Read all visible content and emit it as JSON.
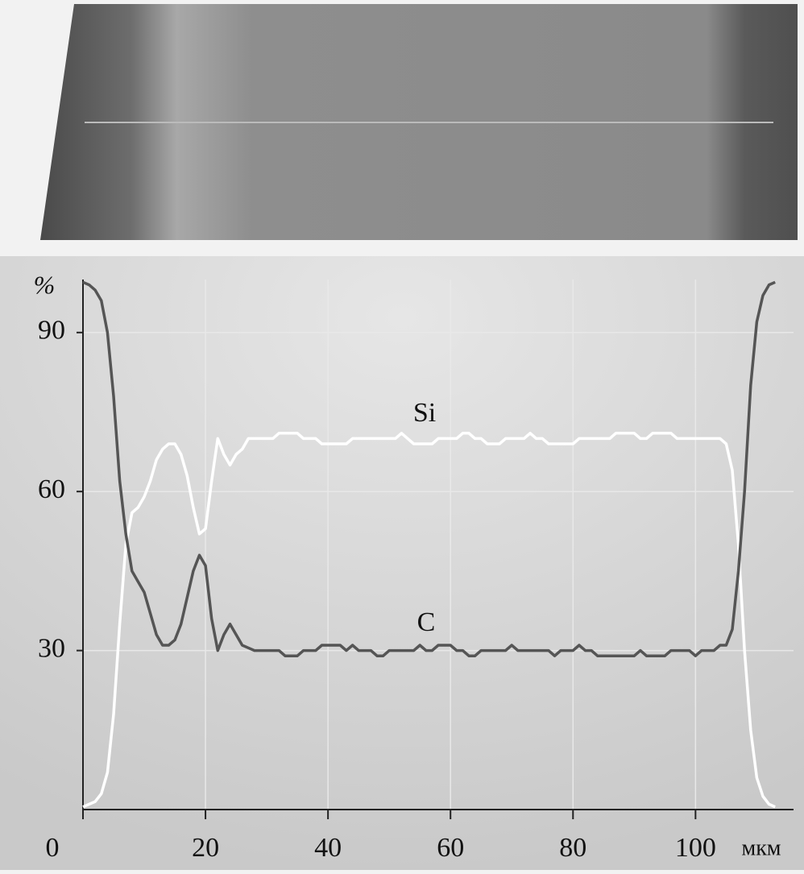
{
  "chart_data": {
    "type": "line",
    "x": [
      0,
      1,
      2,
      3,
      4,
      5,
      6,
      7,
      8,
      9,
      10,
      11,
      12,
      13,
      14,
      15,
      16,
      17,
      18,
      19,
      20,
      21,
      22,
      23,
      24,
      25,
      26,
      27,
      28,
      29,
      30,
      31,
      32,
      33,
      34,
      35,
      36,
      37,
      38,
      39,
      40,
      41,
      42,
      43,
      44,
      45,
      46,
      47,
      48,
      49,
      50,
      51,
      52,
      53,
      54,
      55,
      56,
      57,
      58,
      59,
      60,
      61,
      62,
      63,
      64,
      65,
      66,
      67,
      68,
      69,
      70,
      71,
      72,
      73,
      74,
      75,
      76,
      77,
      78,
      79,
      80,
      81,
      82,
      83,
      84,
      85,
      86,
      87,
      88,
      89,
      90,
      91,
      92,
      93,
      94,
      95,
      96,
      97,
      98,
      99,
      100,
      101,
      102,
      103,
      104,
      105,
      106,
      107,
      108,
      109,
      110,
      111,
      112,
      113
    ],
    "series": [
      {
        "name": "Si",
        "color": "#ffffff",
        "values": [
          0.5,
          1,
          1.5,
          3,
          7,
          18,
          35,
          50,
          56,
          57,
          59,
          62,
          66,
          68,
          69,
          69,
          67,
          63,
          57,
          52,
          53,
          62,
          70,
          67,
          65,
          67,
          68,
          70,
          70,
          70,
          70,
          70,
          71,
          71,
          71,
          71,
          70,
          70,
          70,
          69,
          69,
          69,
          69,
          69,
          70,
          70,
          70,
          70,
          70,
          70,
          70,
          70,
          71,
          70,
          69,
          69,
          69,
          69,
          70,
          70,
          70,
          70,
          71,
          71,
          70,
          70,
          69,
          69,
          69,
          70,
          70,
          70,
          70,
          71,
          70,
          70,
          69,
          69,
          69,
          69,
          69,
          70,
          70,
          70,
          70,
          70,
          70,
          71,
          71,
          71,
          71,
          70,
          70,
          71,
          71,
          71,
          71,
          70,
          70,
          70,
          70,
          70,
          70,
          70,
          70,
          69,
          64,
          50,
          30,
          15,
          6,
          2.5,
          1,
          0.5
        ]
      },
      {
        "name": "C",
        "color": "#555555",
        "values": [
          99.5,
          99,
          98,
          96,
          90,
          78,
          62,
          52,
          45,
          43,
          41,
          37,
          33,
          31,
          31,
          32,
          35,
          40,
          45,
          48,
          46,
          36,
          30,
          33,
          35,
          33,
          31,
          30.5,
          30,
          30,
          30,
          30,
          30,
          29,
          29,
          29,
          30,
          30,
          30,
          31,
          31,
          31,
          31,
          30,
          31,
          30,
          30,
          30,
          29,
          29,
          30,
          30,
          30,
          30,
          30,
          31,
          30,
          30,
          31,
          31,
          31,
          30,
          30,
          29,
          29,
          30,
          30,
          30,
          30,
          30,
          31,
          30,
          30,
          30,
          30,
          30,
          30,
          29,
          30,
          30,
          30,
          31,
          30,
          30,
          29,
          29,
          29,
          29,
          29,
          29,
          29,
          30,
          29,
          29,
          29,
          29,
          30,
          30,
          30,
          30,
          29,
          30,
          30,
          30,
          31,
          31,
          34,
          45,
          60,
          80,
          92,
          97,
          99,
          99.5
        ]
      }
    ],
    "xlim": [
      0,
      116
    ],
    "ylim": [
      0,
      100
    ],
    "xticks": [
      0,
      20,
      40,
      60,
      80,
      100
    ],
    "yticks": [
      30,
      60,
      90
    ],
    "x_label": "мкм",
    "y_label": "%",
    "grid": true
  }
}
